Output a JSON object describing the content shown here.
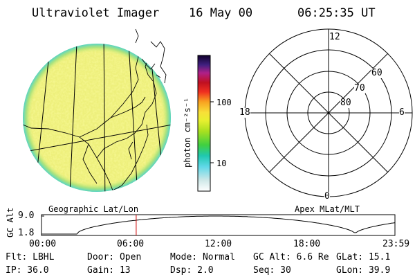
{
  "header": {
    "instrument": "Ultraviolet Imager",
    "date": "16 May 00",
    "time": "06:25:35 UT"
  },
  "colorbar": {
    "unit_label": "photon cm⁻²s⁻¹",
    "ticks": [
      "100",
      "10"
    ],
    "scale": "log"
  },
  "polar_plot": {
    "mlt_labels": {
      "top": "12",
      "left": "18",
      "right": "6",
      "bottom": "0"
    },
    "lat_labels": [
      "60",
      "70",
      "80"
    ]
  },
  "lower_labels": {
    "left": "Geographic Lat/Lon",
    "right": "Apex MLat/MLT"
  },
  "altitude_plot": {
    "ylabel": "GC Alt",
    "yticks": [
      "9.0",
      "1.8"
    ],
    "xticks": [
      "00:00",
      "06:00",
      "12:00",
      "18:00",
      "23:59"
    ],
    "current_time_marker_hours": 6.43,
    "marker_color": "#cc0000"
  },
  "info": {
    "flt": "Flt: LBHL",
    "ip": "IP: 36.0",
    "door": "Door: Open",
    "gain": "Gain: 13",
    "mode": "Mode: Normal",
    "dsp": "Dsp:    2.0",
    "gcalt": "GC Alt: 6.6 Re",
    "seq": "Seq: 30",
    "glat": "GLat:  15.1",
    "glon": "GLon:  39.9"
  }
}
